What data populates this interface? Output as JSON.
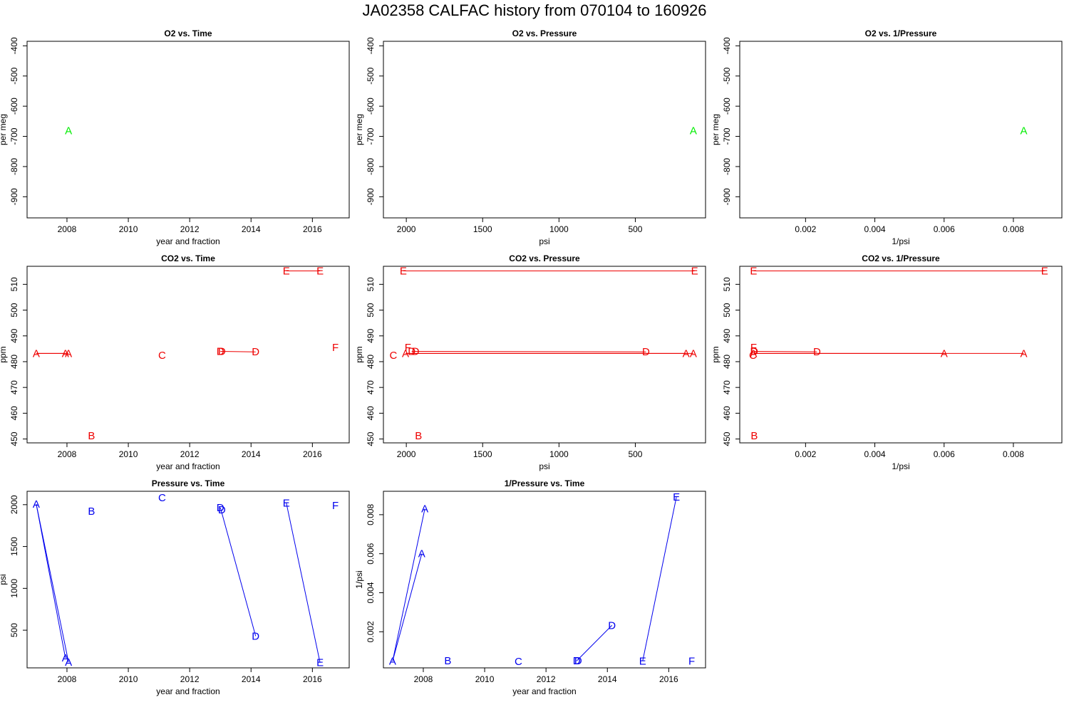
{
  "title": "JA02358   CALFAC history from  070104  to  160926",
  "chart_data": [
    {
      "type": "scatter",
      "title": "O2 vs. Time",
      "xlabel": "year and fraction",
      "ylabel": "per meg",
      "xlim": [
        2006.7,
        2017.2
      ],
      "ylim": [
        -970,
        -385
      ],
      "reverse_x": false,
      "xticks": [
        {
          "v": 2008,
          "label": "2008"
        },
        {
          "v": 2010,
          "label": "2010"
        },
        {
          "v": 2012,
          "label": "2012"
        },
        {
          "v": 2014,
          "label": "2014"
        },
        {
          "v": 2016,
          "label": "2016"
        }
      ],
      "yticks": [
        {
          "v": -400,
          "label": "-400"
        },
        {
          "v": -500,
          "label": "-500"
        },
        {
          "v": -600,
          "label": "-600"
        },
        {
          "v": -700,
          "label": "-700"
        },
        {
          "v": -800,
          "label": "-800"
        },
        {
          "v": -900,
          "label": "-900"
        }
      ],
      "color": "#00ee00",
      "points": [
        {
          "x": 2008.05,
          "y": -681,
          "label": "A"
        }
      ],
      "lines": []
    },
    {
      "type": "scatter",
      "title": "O2 vs. Pressure",
      "xlabel": "psi",
      "ylabel": "per meg",
      "xlim": [
        2150,
        40
      ],
      "ylim": [
        -970,
        -385
      ],
      "reverse_x": true,
      "xticks": [
        {
          "v": 2000,
          "label": "2000"
        },
        {
          "v": 1500,
          "label": "1500"
        },
        {
          "v": 1000,
          "label": "1000"
        },
        {
          "v": 500,
          "label": "500"
        }
      ],
      "yticks": [
        {
          "v": -400,
          "label": "-400"
        },
        {
          "v": -500,
          "label": "-500"
        },
        {
          "v": -600,
          "label": "-600"
        },
        {
          "v": -700,
          "label": "-700"
        },
        {
          "v": -800,
          "label": "-800"
        },
        {
          "v": -900,
          "label": "-900"
        }
      ],
      "color": "#00ee00",
      "points": [
        {
          "x": 120,
          "y": -681,
          "label": "A"
        }
      ],
      "lines": []
    },
    {
      "type": "scatter",
      "title": "O2 vs. 1/Pressure",
      "xlabel": "1/psi",
      "ylabel": "per meg",
      "xlim": [
        0.0001,
        0.0094
      ],
      "ylim": [
        -970,
        -385
      ],
      "reverse_x": false,
      "xticks": [
        {
          "v": 0.002,
          "label": "0.002"
        },
        {
          "v": 0.004,
          "label": "0.004"
        },
        {
          "v": 0.006,
          "label": "0.006"
        },
        {
          "v": 0.008,
          "label": "0.008"
        }
      ],
      "yticks": [
        {
          "v": -400,
          "label": "-400"
        },
        {
          "v": -500,
          "label": "-500"
        },
        {
          "v": -600,
          "label": "-600"
        },
        {
          "v": -700,
          "label": "-700"
        },
        {
          "v": -800,
          "label": "-800"
        },
        {
          "v": -900,
          "label": "-900"
        }
      ],
      "color": "#00ee00",
      "points": [
        {
          "x": 0.0083,
          "y": -681,
          "label": "A"
        }
      ],
      "lines": []
    },
    {
      "type": "scatter",
      "title": "CO2 vs. Time",
      "xlabel": "year and fraction",
      "ylabel": "ppm",
      "xlim": [
        2006.7,
        2017.2
      ],
      "ylim": [
        448.5,
        517
      ],
      "reverse_x": false,
      "xticks": [
        {
          "v": 2008,
          "label": "2008"
        },
        {
          "v": 2010,
          "label": "2010"
        },
        {
          "v": 2012,
          "label": "2012"
        },
        {
          "v": 2014,
          "label": "2014"
        },
        {
          "v": 2016,
          "label": "2016"
        }
      ],
      "yticks": [
        {
          "v": 450,
          "label": "450"
        },
        {
          "v": 460,
          "label": "460"
        },
        {
          "v": 470,
          "label": "470"
        },
        {
          "v": 480,
          "label": "480"
        },
        {
          "v": 490,
          "label": "490"
        },
        {
          "v": 500,
          "label": "500"
        },
        {
          "v": 510,
          "label": "510"
        }
      ],
      "color": "#ee0000",
      "points": [
        {
          "x": 2007.0,
          "y": 483.2,
          "label": "A"
        },
        {
          "x": 2007.95,
          "y": 483.2,
          "label": "A"
        },
        {
          "x": 2008.05,
          "y": 483.2,
          "label": "A"
        },
        {
          "x": 2008.8,
          "y": 451.2,
          "label": "B"
        },
        {
          "x": 2011.1,
          "y": 482.5,
          "label": "C"
        },
        {
          "x": 2013.0,
          "y": 484.0,
          "label": "D"
        },
        {
          "x": 2013.05,
          "y": 484.0,
          "label": "D"
        },
        {
          "x": 2014.15,
          "y": 483.8,
          "label": "D"
        },
        {
          "x": 2015.15,
          "y": 515.2,
          "label": "E"
        },
        {
          "x": 2016.25,
          "y": 515.2,
          "label": "E"
        },
        {
          "x": 2016.75,
          "y": 485.5,
          "label": "F"
        }
      ],
      "lines": [
        [
          0,
          1
        ],
        [
          0,
          2
        ],
        [
          5,
          7
        ],
        [
          8,
          9
        ]
      ]
    },
    {
      "type": "scatter",
      "title": "CO2 vs. Pressure",
      "xlabel": "psi",
      "ylabel": "ppm",
      "xlim": [
        2150,
        40
      ],
      "ylim": [
        448.5,
        517
      ],
      "reverse_x": true,
      "xticks": [
        {
          "v": 2000,
          "label": "2000"
        },
        {
          "v": 1500,
          "label": "1500"
        },
        {
          "v": 1000,
          "label": "1000"
        },
        {
          "v": 500,
          "label": "500"
        }
      ],
      "yticks": [
        {
          "v": 450,
          "label": "450"
        },
        {
          "v": 460,
          "label": "460"
        },
        {
          "v": 470,
          "label": "470"
        },
        {
          "v": 480,
          "label": "480"
        },
        {
          "v": 490,
          "label": "490"
        },
        {
          "v": 500,
          "label": "500"
        },
        {
          "v": 510,
          "label": "510"
        }
      ],
      "color": "#ee0000",
      "points": [
        {
          "x": 2005,
          "y": 483.2,
          "label": "A"
        },
        {
          "x": 168,
          "y": 483.2,
          "label": "A"
        },
        {
          "x": 120,
          "y": 483.2,
          "label": "A"
        },
        {
          "x": 1920,
          "y": 451.2,
          "label": "B"
        },
        {
          "x": 2085,
          "y": 482.5,
          "label": "C"
        },
        {
          "x": 1965,
          "y": 484.0,
          "label": "D"
        },
        {
          "x": 1940,
          "y": 484.0,
          "label": "D"
        },
        {
          "x": 430,
          "y": 483.8,
          "label": "D"
        },
        {
          "x": 2020,
          "y": 515.2,
          "label": "E"
        },
        {
          "x": 112,
          "y": 515.2,
          "label": "E"
        },
        {
          "x": 1990,
          "y": 485.5,
          "label": "F"
        }
      ],
      "lines": [
        [
          0,
          1
        ],
        [
          0,
          2
        ],
        [
          5,
          7
        ],
        [
          8,
          9
        ]
      ]
    },
    {
      "type": "scatter",
      "title": "CO2 vs. 1/Pressure",
      "xlabel": "1/psi",
      "ylabel": "ppm",
      "xlim": [
        0.0001,
        0.0094
      ],
      "ylim": [
        448.5,
        517
      ],
      "reverse_x": false,
      "xticks": [
        {
          "v": 0.002,
          "label": "0.002"
        },
        {
          "v": 0.004,
          "label": "0.004"
        },
        {
          "v": 0.006,
          "label": "0.006"
        },
        {
          "v": 0.008,
          "label": "0.008"
        }
      ],
      "yticks": [
        {
          "v": 450,
          "label": "450"
        },
        {
          "v": 460,
          "label": "460"
        },
        {
          "v": 470,
          "label": "470"
        },
        {
          "v": 480,
          "label": "480"
        },
        {
          "v": 490,
          "label": "490"
        },
        {
          "v": 500,
          "label": "500"
        },
        {
          "v": 510,
          "label": "510"
        }
      ],
      "color": "#ee0000",
      "points": [
        {
          "x": 0.0005,
          "y": 483.2,
          "label": "A"
        },
        {
          "x": 0.006,
          "y": 483.2,
          "label": "A"
        },
        {
          "x": 0.0083,
          "y": 483.2,
          "label": "A"
        },
        {
          "x": 0.00052,
          "y": 451.2,
          "label": "B"
        },
        {
          "x": 0.00048,
          "y": 482.5,
          "label": "C"
        },
        {
          "x": 0.00051,
          "y": 484.0,
          "label": "D"
        },
        {
          "x": 0.00052,
          "y": 484.0,
          "label": "D"
        },
        {
          "x": 0.00233,
          "y": 483.8,
          "label": "D"
        },
        {
          "x": 0.0005,
          "y": 515.2,
          "label": "E"
        },
        {
          "x": 0.0089,
          "y": 515.2,
          "label": "E"
        },
        {
          "x": 0.0005,
          "y": 485.5,
          "label": "F"
        }
      ],
      "lines": [
        [
          0,
          1
        ],
        [
          0,
          2
        ],
        [
          5,
          7
        ],
        [
          8,
          9
        ]
      ]
    },
    {
      "type": "scatter",
      "title": "Pressure vs. Time",
      "xlabel": "year and fraction",
      "ylabel": "psi",
      "xlim": [
        2006.7,
        2017.2
      ],
      "ylim": [
        50,
        2160
      ],
      "reverse_x": false,
      "xticks": [
        {
          "v": 2008,
          "label": "2008"
        },
        {
          "v": 2010,
          "label": "2010"
        },
        {
          "v": 2012,
          "label": "2012"
        },
        {
          "v": 2014,
          "label": "2014"
        },
        {
          "v": 2016,
          "label": "2016"
        }
      ],
      "yticks": [
        {
          "v": 500,
          "label": "500"
        },
        {
          "v": 1000,
          "label": "1000"
        },
        {
          "v": 1500,
          "label": "1500"
        },
        {
          "v": 2000,
          "label": "2000"
        }
      ],
      "color": "#0000ee",
      "points": [
        {
          "x": 2007.0,
          "y": 2005,
          "label": "A"
        },
        {
          "x": 2007.95,
          "y": 168,
          "label": "A"
        },
        {
          "x": 2008.05,
          "y": 120,
          "label": "A"
        },
        {
          "x": 2008.8,
          "y": 1920,
          "label": "B"
        },
        {
          "x": 2011.1,
          "y": 2085,
          "label": "C"
        },
        {
          "x": 2013.0,
          "y": 1965,
          "label": "D"
        },
        {
          "x": 2013.05,
          "y": 1940,
          "label": "D"
        },
        {
          "x": 2014.15,
          "y": 430,
          "label": "D"
        },
        {
          "x": 2015.15,
          "y": 2020,
          "label": "E"
        },
        {
          "x": 2016.25,
          "y": 112,
          "label": "E"
        },
        {
          "x": 2016.75,
          "y": 1990,
          "label": "F"
        }
      ],
      "lines": [
        [
          0,
          1
        ],
        [
          0,
          2
        ],
        [
          5,
          7
        ],
        [
          8,
          9
        ]
      ]
    },
    {
      "type": "scatter",
      "title": "1/Pressure vs. Time",
      "xlabel": "year and fraction",
      "ylabel": "1/psi",
      "xlim": [
        2006.7,
        2017.2
      ],
      "ylim": [
        0.00015,
        0.0092
      ],
      "reverse_x": false,
      "xticks": [
        {
          "v": 2008,
          "label": "2008"
        },
        {
          "v": 2010,
          "label": "2010"
        },
        {
          "v": 2012,
          "label": "2012"
        },
        {
          "v": 2014,
          "label": "2014"
        },
        {
          "v": 2016,
          "label": "2016"
        }
      ],
      "yticks": [
        {
          "v": 0.002,
          "label": "0.002"
        },
        {
          "v": 0.004,
          "label": "0.004"
        },
        {
          "v": 0.006,
          "label": "0.006"
        },
        {
          "v": 0.008,
          "label": "0.008"
        }
      ],
      "color": "#0000ee",
      "points": [
        {
          "x": 2007.0,
          "y": 0.0005,
          "label": "A"
        },
        {
          "x": 2007.95,
          "y": 0.006,
          "label": "A"
        },
        {
          "x": 2008.05,
          "y": 0.0083,
          "label": "A"
        },
        {
          "x": 2008.8,
          "y": 0.00052,
          "label": "B"
        },
        {
          "x": 2011.1,
          "y": 0.00048,
          "label": "C"
        },
        {
          "x": 2013.0,
          "y": 0.00051,
          "label": "D"
        },
        {
          "x": 2013.05,
          "y": 0.00052,
          "label": "D"
        },
        {
          "x": 2014.15,
          "y": 0.00233,
          "label": "D"
        },
        {
          "x": 2015.15,
          "y": 0.0005,
          "label": "E"
        },
        {
          "x": 2016.25,
          "y": 0.0089,
          "label": "E"
        },
        {
          "x": 2016.75,
          "y": 0.0005,
          "label": "F"
        }
      ],
      "lines": [
        [
          0,
          1
        ],
        [
          0,
          2
        ],
        [
          5,
          7
        ],
        [
          8,
          9
        ]
      ]
    }
  ]
}
